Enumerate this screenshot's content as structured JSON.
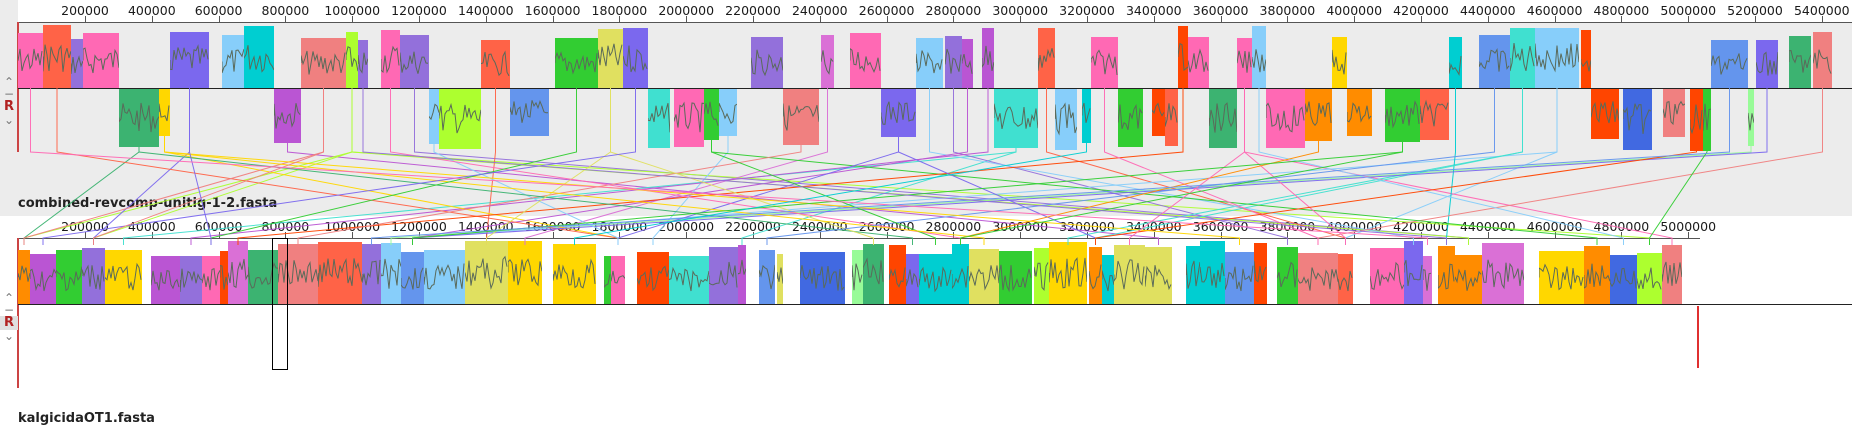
{
  "genomes": [
    {
      "name": "combined-revcomp-unitig-1-2.fasta",
      "ruler_ticks": [
        "200000",
        "400000",
        "600000",
        "800000",
        "1000000",
        "1200000",
        "1400000",
        "1600000",
        "1800000",
        "2000000",
        "2200000",
        "2400000",
        "2600000",
        "2800000",
        "3000000",
        "3200000",
        "3400000",
        "3600000",
        "3800000",
        "4000000",
        "4200000",
        "4400000",
        "4600000",
        "4800000",
        "5000000",
        "5200000",
        "5400000"
      ],
      "controls": {
        "up": "⌃",
        "minus": "−",
        "r": "R",
        "down": "⌄"
      }
    },
    {
      "name": "kalgicidaOT1.fasta",
      "ruler_ticks": [
        "200000",
        "400000",
        "600000",
        "800000",
        "1000000",
        "1200000",
        "1400000",
        "1600000",
        "1800000",
        "2000000",
        "2200000",
        "2400000",
        "2600000",
        "2800000",
        "3000000",
        "3200000",
        "3400000",
        "3600000",
        "3800000",
        "4000000",
        "4200000",
        "4400000",
        "4600000",
        "4800000",
        "5000000"
      ],
      "controls": {
        "up": "⌃",
        "minus": "−",
        "r": "R",
        "down": "⌄"
      }
    }
  ],
  "lcb_palette": [
    "#7b68ee",
    "#ff6347",
    "#32cd32",
    "#40e0d0",
    "#ff69b4",
    "#ffd700",
    "#4169e1",
    "#9370db",
    "#adff2f",
    "#ff8c00",
    "#00ced1",
    "#da70d6",
    "#98fb98",
    "#f08080",
    "#87cefa",
    "#e0e060",
    "#ba55d3",
    "#3cb371",
    "#6495ed",
    "#ff4500"
  ],
  "colors": {
    "panel_bg": "#ececec",
    "profile_line": "#5a6a5a",
    "center_line": "#222222"
  }
}
